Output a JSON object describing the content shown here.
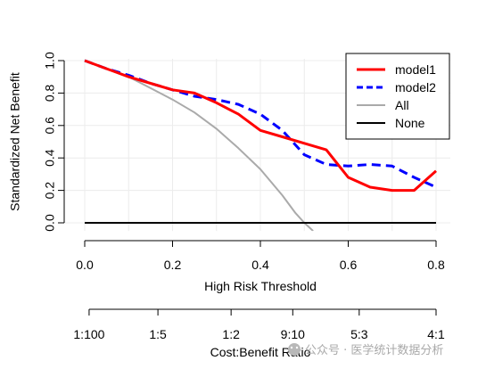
{
  "chart_data": {
    "type": "line",
    "xlabel": "High Risk Threshold",
    "ylabel": "Standardized Net Benefit",
    "xlim": [
      0,
      0.8
    ],
    "ylim": [
      -0.05,
      1.0
    ],
    "xticks": [
      "0.0",
      "0.2",
      "0.4",
      "0.6",
      "0.8"
    ],
    "xtick_values": [
      0,
      0.2,
      0.4,
      0.6,
      0.8
    ],
    "yticks": [
      "0.0",
      "0.2",
      "0.4",
      "0.6",
      "0.8",
      "1.0"
    ],
    "ytick_values": [
      0,
      0.2,
      0.4,
      0.6,
      0.8,
      1.0
    ],
    "grid": true,
    "legend_position": "top-right",
    "series": [
      {
        "name": "model1",
        "color": "#ff0000",
        "style": "solid",
        "x": [
          0,
          0.05,
          0.1,
          0.15,
          0.2,
          0.25,
          0.3,
          0.35,
          0.4,
          0.45,
          0.5,
          0.55,
          0.6,
          0.65,
          0.7,
          0.75,
          0.8
        ],
        "y": [
          1.0,
          0.95,
          0.9,
          0.86,
          0.82,
          0.8,
          0.74,
          0.67,
          0.57,
          0.53,
          0.49,
          0.45,
          0.28,
          0.22,
          0.2,
          0.2,
          0.32
        ]
      },
      {
        "name": "model2",
        "color": "#0000ff",
        "style": "dashed",
        "x": [
          0,
          0.05,
          0.1,
          0.15,
          0.2,
          0.25,
          0.3,
          0.35,
          0.4,
          0.45,
          0.5,
          0.55,
          0.6,
          0.65,
          0.7,
          0.75,
          0.8
        ],
        "y": [
          1.0,
          0.95,
          0.91,
          0.86,
          0.82,
          0.78,
          0.76,
          0.73,
          0.67,
          0.57,
          0.42,
          0.36,
          0.35,
          0.36,
          0.35,
          0.28,
          0.22
        ]
      },
      {
        "name": "All",
        "color": "#aaaaaa",
        "style": "solid",
        "x": [
          0,
          0.05,
          0.1,
          0.15,
          0.2,
          0.25,
          0.3,
          0.35,
          0.4,
          0.45,
          0.48,
          0.5,
          0.52
        ],
        "y": [
          1.0,
          0.95,
          0.9,
          0.83,
          0.76,
          0.68,
          0.58,
          0.46,
          0.33,
          0.17,
          0.06,
          0.0,
          -0.05
        ]
      },
      {
        "name": "None",
        "color": "#000000",
        "style": "solid",
        "x": [
          0,
          0.8
        ],
        "y": [
          0,
          0
        ]
      }
    ],
    "secondary_axis": {
      "label": "Cost:Benefit Ratio",
      "ticks": [
        "1:100",
        "1:5",
        "1:2",
        "9:10",
        "5:3",
        "4:1"
      ],
      "tick_values": [
        0.01,
        0.1667,
        0.3333,
        0.4737,
        0.625,
        0.8
      ]
    }
  },
  "watermark": {
    "text": "公众号 · 医学统计数据分析"
  }
}
